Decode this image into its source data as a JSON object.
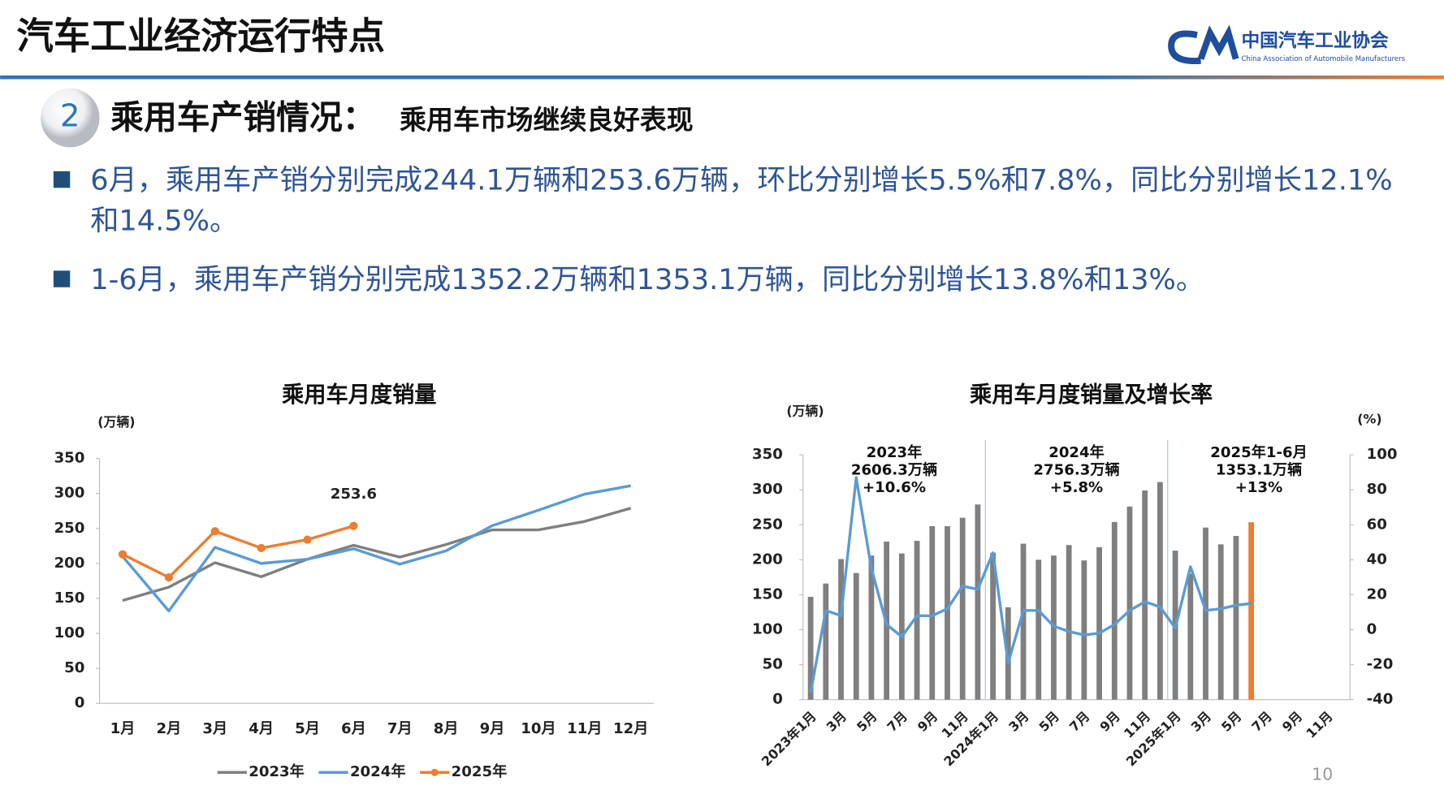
{
  "header": {
    "title": "汽车工业经济运行特点",
    "org": "中国汽车工业协会",
    "org_en": "China Association of Automobile Manufacturers",
    "section_number": "2",
    "heading": "乘用车产销情况：",
    "subheading": "乘用车市场继续良好表现",
    "page_number": "10"
  },
  "bullets": [
    "6月，乘用车产销分别完成244.1万辆和253.6万辆，环比分别增长5.5%和7.8%，同比分别增长12.1%和14.5%。",
    "1-6月，乘用车产销分别完成1352.2万辆和1353.1万辆，同比分别增长13.8%和13%。"
  ],
  "chart_data": [
    {
      "type": "line",
      "title": "乘用车月度销量",
      "y_label": "(万辆)",
      "categories": [
        "1月",
        "2月",
        "3月",
        "4月",
        "5月",
        "6月",
        "7月",
        "8月",
        "9月",
        "10月",
        "11月",
        "12月"
      ],
      "series": [
        {
          "name": "2023年",
          "color": "#7f7f7f",
          "values": [
            147,
            166,
            201,
            181,
            206,
            226,
            209,
            227,
            248,
            248,
            260,
            279
          ]
        },
        {
          "name": "2024年",
          "color": "#5b9bd5",
          "values": [
            210,
            132,
            223,
            200,
            206,
            221,
            199,
            218,
            254,
            276,
            299,
            311
          ]
        },
        {
          "name": "2025年",
          "color": "#ed7d31",
          "marker": true,
          "values": [
            213,
            180,
            246,
            222,
            234,
            253.6,
            null,
            null,
            null,
            null,
            null,
            null
          ],
          "value_labels": [
            null,
            null,
            null,
            null,
            null,
            "253.6",
            null,
            null,
            null,
            null,
            null,
            null
          ]
        }
      ],
      "ylim": [
        0,
        350
      ],
      "yticks": [
        0,
        50,
        100,
        150,
        200,
        250,
        300,
        350
      ],
      "grid": false,
      "legend": "bottom"
    },
    {
      "type": "combo",
      "title": "乘用车月度销量及增长率",
      "y_label": "(万辆)",
      "y2_label": "(%)",
      "categories": [
        "2023年1月",
        null,
        "3月",
        null,
        "5月",
        null,
        "7月",
        null,
        "9月",
        null,
        "11月",
        null,
        "2024年1月",
        null,
        "3月",
        null,
        "5月",
        null,
        "7月",
        null,
        "9月",
        null,
        "11月",
        null,
        "2025年1月",
        null,
        "3月",
        null,
        "5月",
        null,
        "7月",
        null,
        "9月",
        null,
        "11月",
        null
      ],
      "series": [
        {
          "type": "bar",
          "color": "#7f7f7f",
          "colors": [
            "#7f7f7f",
            "#7f7f7f",
            "#7f7f7f",
            "#7f7f7f",
            "#7f7f7f",
            "#7f7f7f",
            "#7f7f7f",
            "#7f7f7f",
            "#7f7f7f",
            "#7f7f7f",
            "#7f7f7f",
            "#7f7f7f",
            "#7f7f7f",
            "#7f7f7f",
            "#7f7f7f",
            "#7f7f7f",
            "#7f7f7f",
            "#7f7f7f",
            "#7f7f7f",
            "#7f7f7f",
            "#7f7f7f",
            "#7f7f7f",
            "#7f7f7f",
            "#7f7f7f",
            "#7f7f7f",
            "#7f7f7f",
            "#7f7f7f",
            "#7f7f7f",
            "#7f7f7f",
            "#ed7d31",
            null,
            null,
            null,
            null,
            null,
            null
          ],
          "values": [
            147,
            166,
            201,
            181,
            206,
            226,
            209,
            227,
            248,
            248,
            260,
            279,
            210,
            132,
            223,
            200,
            206,
            221,
            199,
            218,
            254,
            276,
            299,
            311,
            213,
            180,
            246,
            222,
            234,
            253.6,
            null,
            null,
            null,
            null,
            null,
            null
          ]
        },
        {
          "type": "line",
          "axis": "y2",
          "color": "#5b9bd5",
          "values": [
            -36,
            11,
            8,
            87,
            35,
            3,
            -4,
            8,
            8,
            12,
            25,
            23,
            44,
            -19,
            11,
            11,
            2,
            -1,
            -3,
            -2,
            3,
            11,
            16,
            13,
            1,
            36,
            11,
            12,
            14,
            15,
            null,
            null,
            null,
            null,
            null,
            null
          ]
        }
      ],
      "annotations": [
        [
          "2023年",
          "2606.3万辆",
          "+10.6%"
        ],
        [
          "2024年",
          "2756.3万辆",
          "+5.8%"
        ],
        [
          "2025年1-6月",
          "1353.1万辆",
          "+13%"
        ]
      ],
      "ylim": [
        0,
        350
      ],
      "yticks": [
        0,
        50,
        100,
        150,
        200,
        250,
        300,
        350
      ],
      "y2lim": [
        -40,
        100
      ],
      "y2ticks": [
        -40,
        -20,
        0,
        20,
        40,
        60,
        80,
        100
      ],
      "grid": false
    }
  ]
}
